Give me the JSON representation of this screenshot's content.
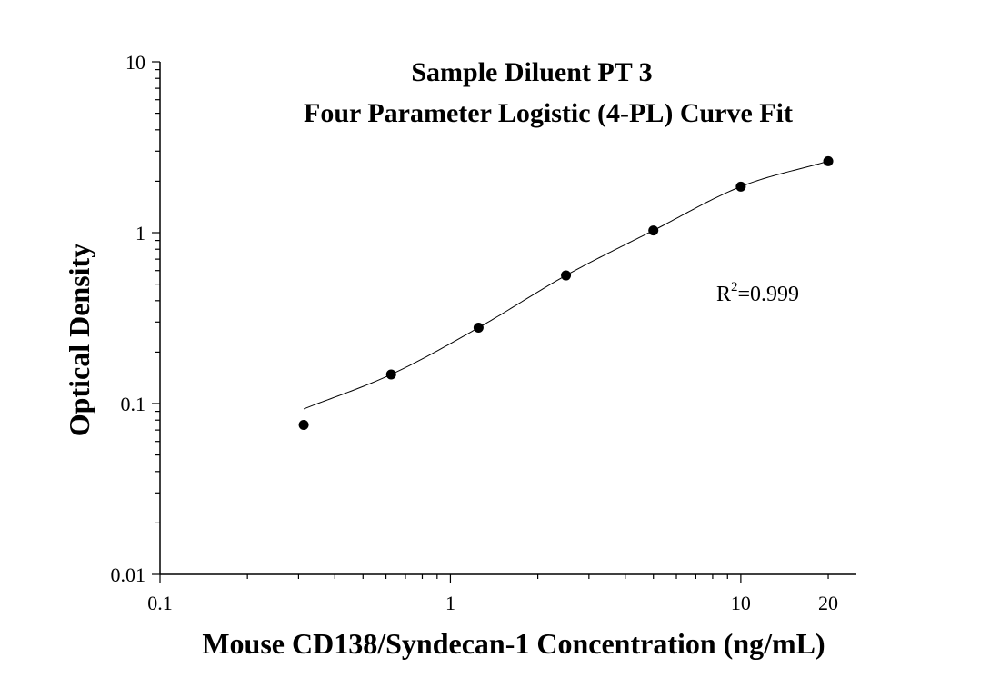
{
  "chart_data": {
    "type": "scatter",
    "title": "Sample Diluent PT 3",
    "subtitle": "Four Parameter Logistic (4-PL) Curve Fit",
    "xlabel": "Mouse CD138/Syndecan-1 Concentration (ng/mL)",
    "ylabel": "Optical Density",
    "x_scale": "log",
    "y_scale": "log",
    "xlim": [
      0.1,
      25
    ],
    "ylim": [
      0.01,
      10
    ],
    "x_ticks": [
      {
        "value": 0.1,
        "label": "0.1"
      },
      {
        "value": 1,
        "label": "1"
      },
      {
        "value": 10,
        "label": "10"
      },
      {
        "value": 20,
        "label": "20"
      }
    ],
    "y_ticks": [
      {
        "value": 0.01,
        "label": "0.01"
      },
      {
        "value": 0.1,
        "label": "0.1"
      },
      {
        "value": 1,
        "label": "1"
      },
      {
        "value": 10,
        "label": "10"
      }
    ],
    "series": [
      {
        "kind": "points",
        "color": "#000000",
        "x": [
          0.3125,
          0.625,
          1.25,
          2.5,
          5,
          10,
          20
        ],
        "y": [
          0.075,
          0.148,
          0.278,
          0.562,
          1.03,
          1.86,
          2.62
        ]
      },
      {
        "kind": "fit-curve",
        "color": "#000000",
        "model": "4-PL",
        "x_range": [
          0.3125,
          20
        ]
      }
    ],
    "annotation": {
      "r2_symbol": "R",
      "r2_superscript": "2",
      "r2_value": "=0.999"
    },
    "grid": false
  }
}
